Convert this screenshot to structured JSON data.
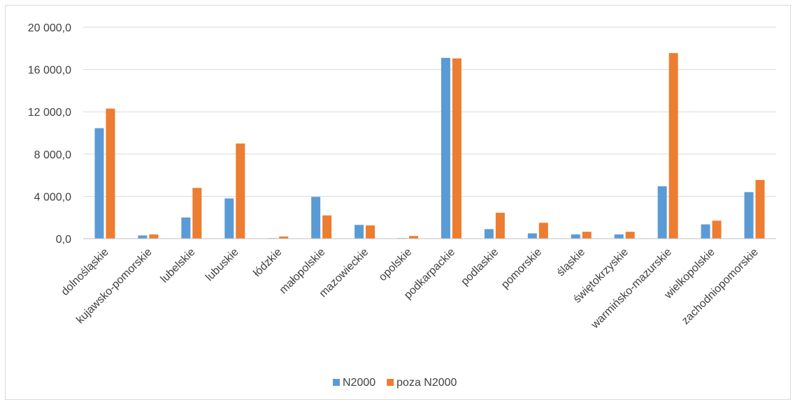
{
  "chart_data": {
    "type": "bar",
    "categories": [
      "dolnośląskie",
      "kujawsko-pomorskie",
      "lubelskie",
      "lubuskie",
      "łódzkie",
      "małopolskie",
      "mazowieckie",
      "opolskie",
      "podkarpackie",
      "podlaskie",
      "pomorskie",
      "śląskie",
      "świętokrzyskie",
      "warmińsko-mazurskie",
      "wielkopolskie",
      "zachodniopomorskie"
    ],
    "series": [
      {
        "name": "N2000",
        "color": "#5b9bd5",
        "values": [
          10450,
          300,
          2000,
          3800,
          50,
          3950,
          1300,
          50,
          17100,
          900,
          500,
          400,
          400,
          4950,
          1350,
          4400
        ]
      },
      {
        "name": "poza N2000",
        "color": "#ed7d31",
        "values": [
          12300,
          400,
          4800,
          9000,
          200,
          2200,
          1250,
          250,
          17050,
          2450,
          1500,
          650,
          650,
          17550,
          1700,
          5550
        ]
      }
    ],
    "ylim": [
      0,
      20000
    ],
    "y_ticks": [
      "0,0",
      "4 000,0",
      "8 000,0",
      "12 000,0",
      "16 000,0",
      "20 000,0"
    ],
    "y_tick_values": [
      0,
      4000,
      8000,
      12000,
      16000,
      20000
    ],
    "grid": true,
    "legend_position": "bottom",
    "gridline_color": "#d9d9d9",
    "axis_color": "#bfbfbf"
  }
}
